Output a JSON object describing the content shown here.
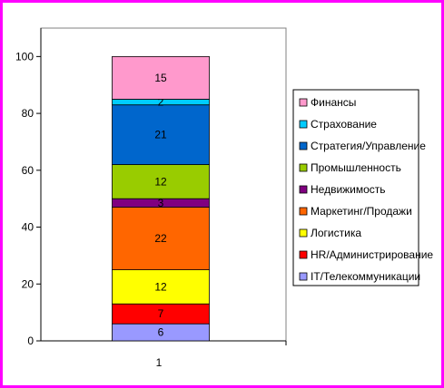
{
  "chart_data": {
    "type": "bar",
    "stacked": true,
    "categories": [
      "1"
    ],
    "ylim": [
      0,
      110
    ],
    "yticks": [
      0,
      20,
      40,
      60,
      80,
      100
    ],
    "grid": false,
    "legend_position": "right",
    "series": [
      {
        "name": "IT/Телекоммуникации",
        "values": [
          6
        ],
        "color": "#9999ff",
        "label": "6"
      },
      {
        "name": "HR/Администрирование",
        "values": [
          7
        ],
        "color": "#ff0000",
        "label": "7"
      },
      {
        "name": "Логистика",
        "values": [
          12
        ],
        "color": "#ffff00",
        "label": "12"
      },
      {
        "name": "Маркетинг/Продажи",
        "values": [
          22
        ],
        "color": "#ff6600",
        "label": "22"
      },
      {
        "name": "Недвижимость",
        "values": [
          3
        ],
        "color": "#800080",
        "label": "3"
      },
      {
        "name": "Промышленность",
        "values": [
          12
        ],
        "color": "#99cc00",
        "label": "12"
      },
      {
        "name": "Стратегия/Управление",
        "values": [
          21
        ],
        "color": "#0066cc",
        "label": "21"
      },
      {
        "name": "Страхование",
        "values": [
          2
        ],
        "color": "#00ccff",
        "label": "2"
      },
      {
        "name": "Финансы",
        "values": [
          15
        ],
        "color": "#ff99cc",
        "label": "15"
      }
    ]
  }
}
